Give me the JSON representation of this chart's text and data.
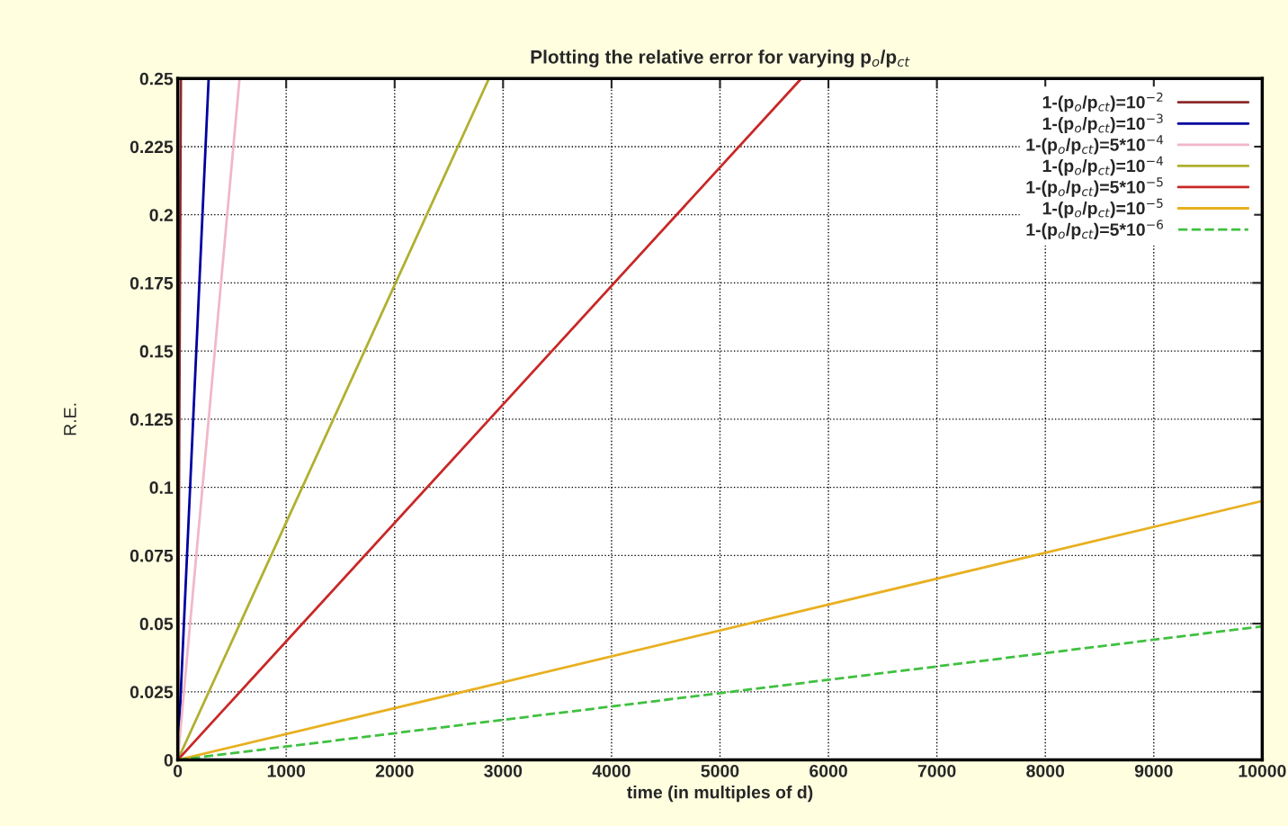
{
  "chart_data": {
    "type": "line",
    "title": "Plotting the relative error for varying p$_{o}$/p$_{ct}$",
    "xlabel": "time (in multiples of d)",
    "ylabel": "R.E.",
    "xlim": [
      0,
      10000
    ],
    "ylim": [
      0,
      0.25
    ],
    "xticks": [
      0,
      1000,
      2000,
      3000,
      4000,
      5000,
      6000,
      7000,
      8000,
      9000,
      10000
    ],
    "yticks": [
      0,
      0.025,
      0.05,
      0.075,
      0.1,
      0.125,
      0.15,
      0.175,
      0.2,
      0.225,
      0.25
    ],
    "grid": true,
    "legend": "top right",
    "line_style": "solid",
    "series": [
      {
        "name": "1-(p$_{o}$/p$_{ct}$)=10$^{−2}$",
        "color": "#8b2a2a",
        "x": [
          0,
          29
        ],
        "values": [
          0,
          0.25
        ]
      },
      {
        "name": "1-(p$_{o}$/p$_{ct}$)=10$^{−3}$",
        "color": "#0000a0",
        "x": [
          0,
          285
        ],
        "values": [
          0,
          0.25
        ]
      },
      {
        "name": "1-(p$_{o}$/p$_{ct}$)=5*10$^{−4}$",
        "color": "#f0b8c8",
        "x": [
          0,
          570
        ],
        "values": [
          0,
          0.25
        ]
      },
      {
        "name": "1-(p$_{o}$/p$_{ct}$)=10$^{−4}$",
        "color": "#b0b030",
        "x": [
          0,
          2870
        ],
        "values": [
          0,
          0.25
        ]
      },
      {
        "name": "1-(p$_{o}$/p$_{ct}$)=5*10$^{−5}$",
        "color": "#c82828",
        "x": [
          0,
          5750
        ],
        "values": [
          0,
          0.25
        ]
      },
      {
        "name": "1-(p$_{o}$/p$_{ct}$)=10$^{−5}$",
        "color": "#e8b020",
        "x": [
          0,
          10000
        ],
        "values": [
          0,
          0.095
        ]
      },
      {
        "name": "1-(p$_{o}$/p$_{ct}$)=5*10$^{−6}$",
        "color": "#40c040",
        "x": [
          0,
          10000
        ],
        "values": [
          0,
          0.049
        ],
        "line_style": "dashed"
      }
    ]
  }
}
